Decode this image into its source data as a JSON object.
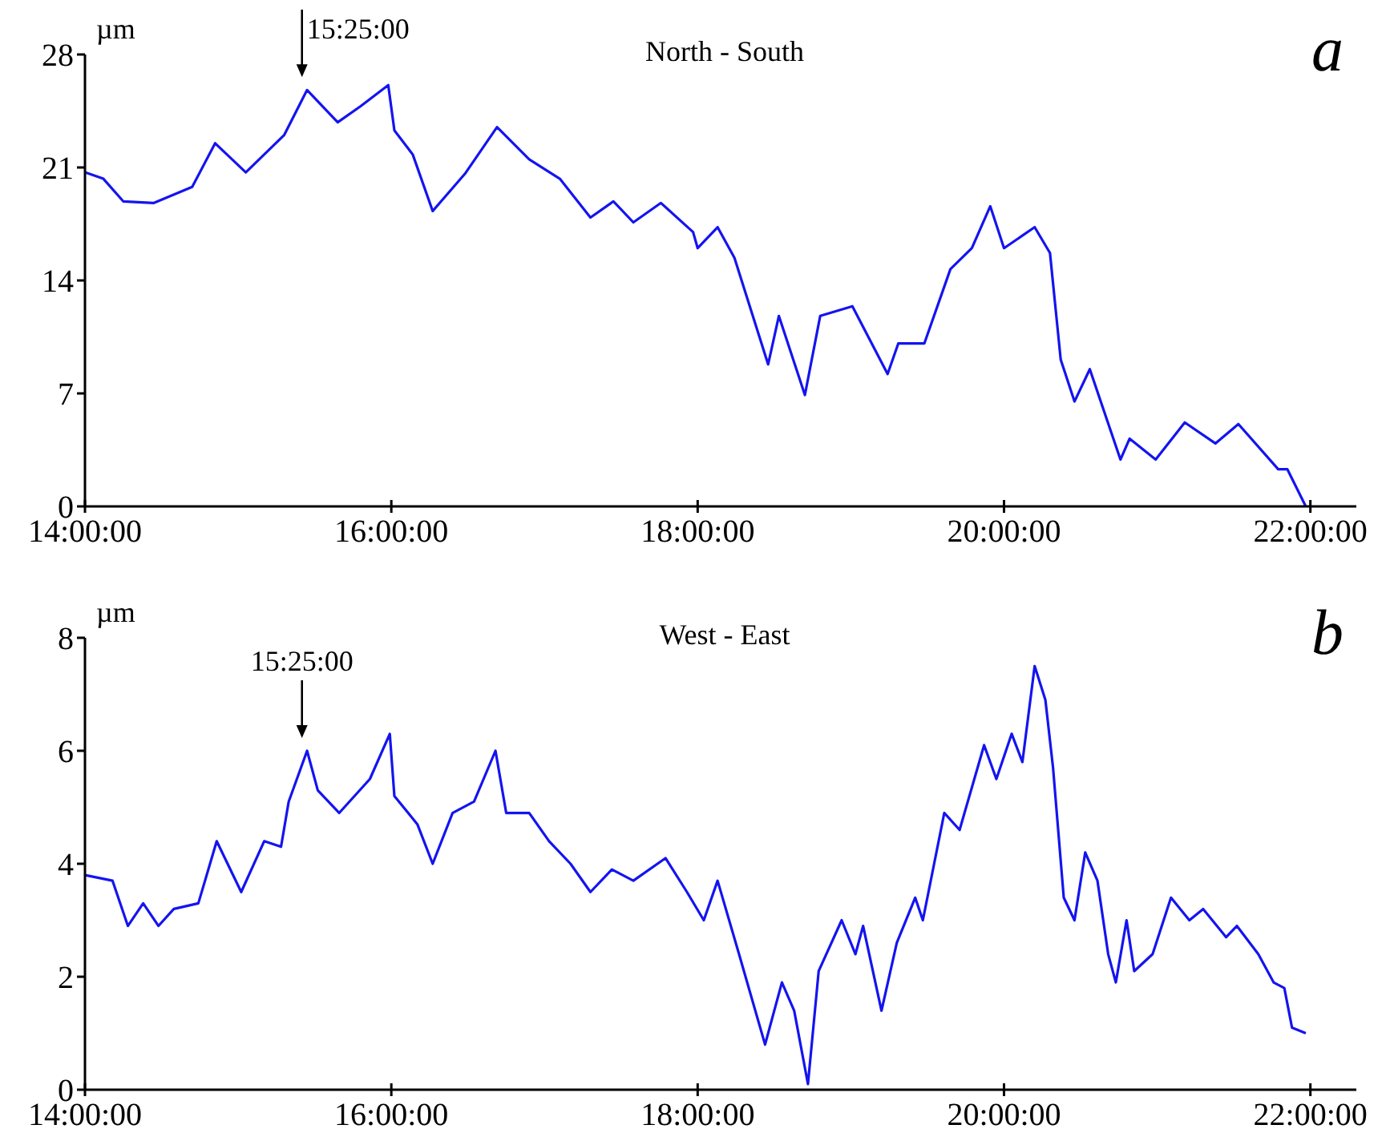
{
  "chart_data": [
    {
      "type": "line",
      "title": "North - South",
      "ylabel": "µm",
      "annotations": [
        {
          "text": "15:25:00",
          "x": 15.4167,
          "y": 25.8
        },
        "a"
      ],
      "xlim": [
        14,
        22.3
      ],
      "xticks": [
        {
          "value": 14,
          "label": "14:00:00"
        },
        {
          "value": 16,
          "label": "16:00:00"
        },
        {
          "value": 18,
          "label": "18:00:00"
        },
        {
          "value": 20,
          "label": "20:00:00"
        },
        {
          "value": 22,
          "label": "22:00:00"
        }
      ],
      "ylim": [
        0,
        28
      ],
      "yticks": [
        0,
        7,
        14,
        21,
        28
      ],
      "grid": false,
      "series": [
        {
          "color": "#1414f0",
          "x": [
            14.0,
            14.12,
            14.25,
            14.45,
            14.7,
            14.85,
            15.05,
            15.3,
            15.45,
            15.65,
            15.8,
            15.98,
            16.02,
            16.14,
            16.27,
            16.48,
            16.69,
            16.9,
            17.1,
            17.3,
            17.45,
            17.58,
            17.76,
            17.97,
            18.0,
            18.13,
            18.24,
            18.46,
            18.53,
            18.7,
            18.8,
            19.01,
            19.24,
            19.31,
            19.48,
            19.65,
            19.79,
            19.91,
            20.0,
            20.2,
            20.3,
            20.37,
            20.46,
            20.56,
            20.76,
            20.82,
            20.99,
            21.18,
            21.38,
            21.53,
            21.79,
            21.85,
            21.97
          ],
          "values": [
            20.7,
            20.3,
            18.9,
            18.8,
            19.8,
            22.5,
            20.7,
            23.0,
            25.8,
            23.8,
            24.8,
            26.1,
            23.3,
            21.8,
            18.3,
            20.6,
            23.5,
            21.5,
            20.3,
            17.9,
            18.9,
            17.6,
            18.8,
            17.0,
            16.0,
            17.3,
            15.4,
            8.8,
            11.8,
            6.9,
            11.8,
            12.4,
            8.2,
            10.1,
            10.1,
            14.7,
            16.0,
            18.6,
            16.0,
            17.3,
            15.7,
            9.1,
            6.5,
            8.5,
            2.9,
            4.2,
            2.9,
            5.2,
            3.9,
            5.1,
            2.3,
            2.3,
            0
          ]
        }
      ]
    },
    {
      "type": "line",
      "title": "West - East",
      "ylabel": "µm",
      "annotations": [
        {
          "text": "15:25:00",
          "x": 15.4167,
          "y": 6.0
        },
        "b"
      ],
      "xlim": [
        14,
        22.3
      ],
      "xticks": [
        {
          "value": 14,
          "label": "14:00:00"
        },
        {
          "value": 16,
          "label": "16:00:00"
        },
        {
          "value": 18,
          "label": "18:00:00"
        },
        {
          "value": 20,
          "label": "20:00:00"
        },
        {
          "value": 22,
          "label": "22:00:00"
        }
      ],
      "ylim": [
        0,
        8
      ],
      "yticks": [
        0,
        2,
        4,
        6,
        8
      ],
      "grid": false,
      "series": [
        {
          "color": "#1414f0",
          "x": [
            14.0,
            14.18,
            14.28,
            14.38,
            14.48,
            14.58,
            14.74,
            14.86,
            15.02,
            15.17,
            15.28,
            15.33,
            15.45,
            15.52,
            15.66,
            15.86,
            15.99,
            16.02,
            16.17,
            16.27,
            16.4,
            16.54,
            16.68,
            16.75,
            16.9,
            17.03,
            17.17,
            17.3,
            17.44,
            17.58,
            17.79,
            17.93,
            18.04,
            18.13,
            18.27,
            18.44,
            18.55,
            18.63,
            18.72,
            18.79,
            18.94,
            19.03,
            19.08,
            19.2,
            19.3,
            19.42,
            19.47,
            19.61,
            19.71,
            19.87,
            19.95,
            20.05,
            20.12,
            20.2,
            20.27,
            20.32,
            20.39,
            20.46,
            20.53,
            20.61,
            20.68,
            20.73,
            20.8,
            20.85,
            20.97,
            21.09,
            21.21,
            21.3,
            21.45,
            21.52,
            21.66,
            21.76,
            21.83,
            21.88,
            21.97
          ],
          "values": [
            3.8,
            3.7,
            2.9,
            3.3,
            2.9,
            3.2,
            3.3,
            4.4,
            3.5,
            4.4,
            4.3,
            5.1,
            6.0,
            5.3,
            4.9,
            5.5,
            6.3,
            5.2,
            4.7,
            4.0,
            4.9,
            5.1,
            6.0,
            4.9,
            4.9,
            4.4,
            4.0,
            3.5,
            3.9,
            3.7,
            4.1,
            3.5,
            3.0,
            3.7,
            2.4,
            0.8,
            1.9,
            1.4,
            0.1,
            2.1,
            3.0,
            2.4,
            2.9,
            1.4,
            2.6,
            3.4,
            3.0,
            4.9,
            4.6,
            6.1,
            5.5,
            6.3,
            5.8,
            7.5,
            6.9,
            5.7,
            3.4,
            3.0,
            4.2,
            3.7,
            2.4,
            1.9,
            3.0,
            2.1,
            2.4,
            3.4,
            3.0,
            3.2,
            2.7,
            2.9,
            2.4,
            1.9,
            1.8,
            1.1,
            1.0
          ]
        }
      ]
    }
  ]
}
